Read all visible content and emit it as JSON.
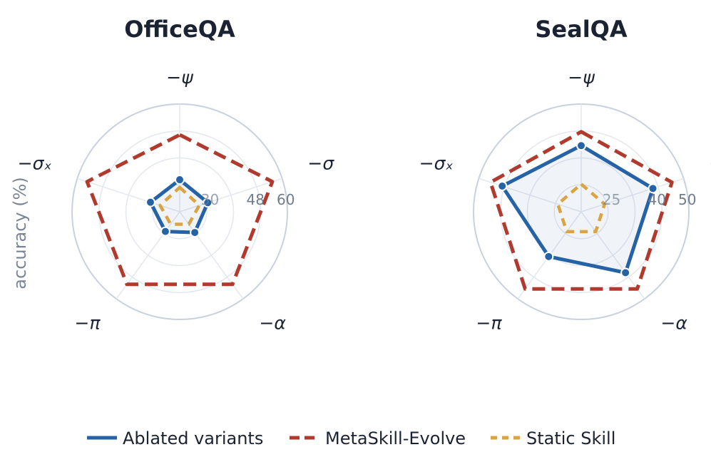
{
  "ylabel": "accuracy (%)",
  "legend": [
    {
      "label": "Ablated variants",
      "color": "#2563a6",
      "style": "solid"
    },
    {
      "label": "MetaSkill-Evolve",
      "color": "#b03a2e",
      "style": "dashed"
    },
    {
      "label": "Static Skill",
      "color": "#d9a441",
      "style": "dashed"
    }
  ],
  "chart_data": [
    {
      "type": "radar",
      "title": "OfficeQA",
      "axes": [
        "−ψ",
        "−σ",
        "−α",
        "−π",
        "−σₓ"
      ],
      "rlim": [
        18,
        60
      ],
      "ticks": [
        30,
        48,
        60
      ],
      "series": [
        {
          "name": "Ablated variants",
          "values": [
            30.5,
            29.5,
            28,
            27.5,
            30
          ],
          "color": "#2563a6"
        },
        {
          "name": "MetaSkill-Evolve",
          "values": [
            48,
            56,
            53,
            53,
            56
          ],
          "color": "#b03a2e"
        },
        {
          "name": "Static Skill",
          "values": [
            27.5,
            26,
            24,
            24,
            26
          ],
          "color": "#d9a441"
        }
      ]
    },
    {
      "type": "radar",
      "title": "SealQA",
      "axes": [
        "−ψ",
        "−σ",
        "−α",
        "−π",
        "−σₓ"
      ],
      "rlim": [
        15,
        50
      ],
      "ticks": [
        25,
        40,
        50
      ],
      "series": [
        {
          "name": "Ablated variants",
          "values": [
            36.5,
            39.5,
            39.5,
            33,
            42
          ],
          "color": "#2563a6"
        },
        {
          "name": "MetaSkill-Evolve",
          "values": [
            41,
            46,
            46,
            46,
            46
          ],
          "color": "#b03a2e"
        },
        {
          "name": "Static Skill",
          "values": [
            24,
            23,
            23,
            23,
            23
          ],
          "color": "#d9a441"
        }
      ]
    }
  ]
}
